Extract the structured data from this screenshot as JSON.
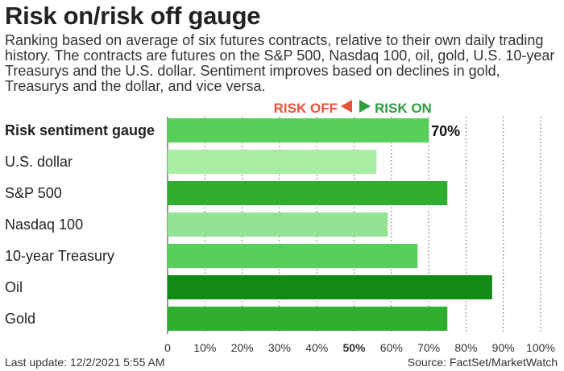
{
  "header": {
    "title": "Risk on/risk off gauge",
    "subtitle": "Ranking based on average of six futures contracts, relative to their own daily trading history. The contracts are futures on the S&P 500, Nasdaq 100, oil, gold, U.S. 10-year Treasurys and the U.S. dollar. Sentiment improves based on declines in gold, Treasurys and the dollar, and vice versa."
  },
  "legend": {
    "risk_off": "RISK OFF",
    "risk_on": "RISK ON",
    "risk_off_color": "#e8533a",
    "risk_on_color": "#2e9e3e"
  },
  "footer": {
    "last_update": "Last update: 12/2/2021 5:55 AM",
    "source": "Source: FactSet/MarketWatch"
  },
  "chart_data": {
    "type": "bar",
    "orientation": "horizontal",
    "categories": [
      "Risk sentiment gauge",
      "U.S. dollar",
      "S&P 500",
      "Nasdaq 100",
      "10-year Treasury",
      "Oil",
      "Gold"
    ],
    "values": [
      70,
      56,
      75,
      59,
      67,
      87,
      75
    ],
    "data_labels": [
      "70%",
      "",
      "",
      "",
      "",
      "",
      ""
    ],
    "colors": [
      "#58cf58",
      "#a8eda4",
      "#2fae2f",
      "#96e294",
      "#58cf58",
      "#138a13",
      "#2fae2f"
    ],
    "xlim": [
      0,
      100
    ],
    "xticks": [
      0,
      10,
      20,
      30,
      40,
      50,
      60,
      70,
      80,
      90,
      100
    ],
    "xtick_labels": [
      "0",
      "10%",
      "20%",
      "30%",
      "40%",
      "50%",
      "60%",
      "70%",
      "80%",
      "90%",
      "100%"
    ],
    "highlight_tick": 50,
    "grid": "vertical dotted"
  }
}
